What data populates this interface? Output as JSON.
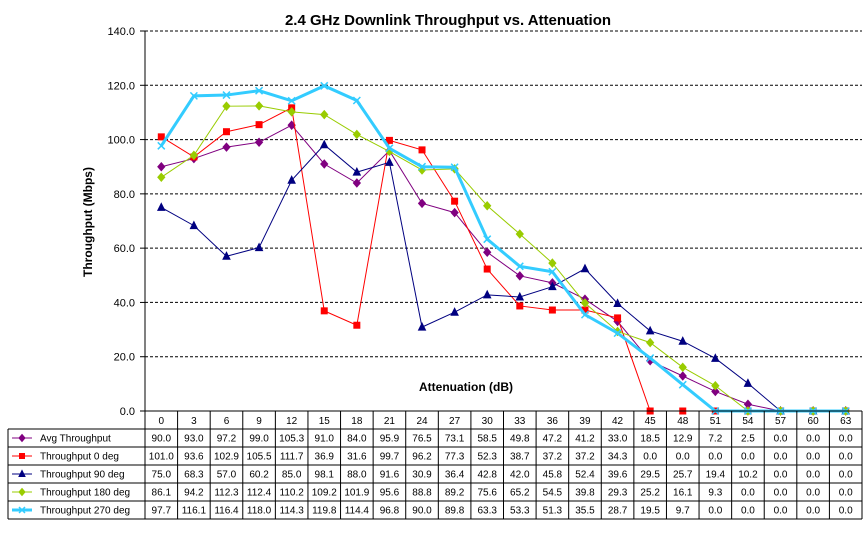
{
  "chart_data": {
    "type": "line",
    "title": "2.4 GHz Downlink Throughput vs. Attenuation",
    "xlabel": "Attenuation (dB)",
    "ylabel": "Throughput (Mbps)",
    "ylim": [
      0,
      140
    ],
    "yticks": [
      "0.0",
      "20.0",
      "40.0",
      "60.0",
      "80.0",
      "100.0",
      "120.0",
      "140.0"
    ],
    "grid": "horizontal dashed",
    "legend": "data table below plot",
    "categories": [
      "0",
      "3",
      "6",
      "9",
      "12",
      "15",
      "18",
      "21",
      "24",
      "27",
      "30",
      "33",
      "36",
      "39",
      "42",
      "45",
      "48",
      "51",
      "54",
      "57",
      "60",
      "63"
    ],
    "series": [
      {
        "name": "Avg Throughput",
        "color": "#800080",
        "marker": "diamond",
        "values": [
          90.0,
          93.0,
          97.2,
          99.0,
          105.3,
          91.0,
          84.0,
          95.9,
          76.5,
          73.1,
          58.5,
          49.8,
          47.2,
          41.2,
          33.0,
          18.5,
          12.9,
          7.2,
          2.5,
          0.0,
          0.0,
          0.0
        ],
        "labels": [
          "90.0",
          "93.0",
          "97.2",
          "99.0",
          "105.3",
          "91.0",
          "84.0",
          "95.9",
          "76.5",
          "73.1",
          "58.5",
          "49.8",
          "47.2",
          "41.2",
          "33.0",
          "18.5",
          "12.9",
          "7.2",
          "2.5",
          "0.0",
          "0.0",
          "0.0"
        ]
      },
      {
        "name": "Throughput 0 deg",
        "color": "#ff0000",
        "marker": "square",
        "values": [
          101.0,
          93.6,
          102.9,
          105.5,
          111.7,
          36.9,
          31.6,
          99.7,
          96.2,
          77.3,
          52.3,
          38.7,
          37.2,
          37.2,
          34.3,
          0.0,
          0.0,
          0.0,
          0.0,
          0.0,
          0.0,
          0.0
        ],
        "labels": [
          "101.0",
          "93.6",
          "102.9",
          "105.5",
          "111.7",
          "36.9",
          "31.6",
          "99.7",
          "96.2",
          "77.3",
          "52.3",
          "38.7",
          "37.2",
          "37.2",
          "34.3",
          "0.0",
          "0.0",
          "0.0",
          "0.0",
          "0.0",
          "0.0",
          "0.0"
        ]
      },
      {
        "name": "Throughput 90 deg",
        "color": "#000080",
        "marker": "triangle",
        "values": [
          75.0,
          68.3,
          57.0,
          60.2,
          85.0,
          98.1,
          88.0,
          91.6,
          30.9,
          36.4,
          42.8,
          42.0,
          45.8,
          52.4,
          39.6,
          29.5,
          25.7,
          19.4,
          10.2,
          0.0,
          0.0,
          0.0
        ],
        "labels": [
          "75.0",
          "68.3",
          "57.0",
          "60.2",
          "85.0",
          "98.1",
          "88.0",
          "91.6",
          "30.9",
          "36.4",
          "42.8",
          "42.0",
          "45.8",
          "52.4",
          "39.6",
          "29.5",
          "25.7",
          "19.4",
          "10.2",
          "0.0",
          "0.0",
          "0.0"
        ]
      },
      {
        "name": "Throughput 180 deg",
        "color": "#99cc00",
        "marker": "diamond",
        "values": [
          86.1,
          94.2,
          112.3,
          112.4,
          110.2,
          109.2,
          101.9,
          95.6,
          88.8,
          89.2,
          75.6,
          65.2,
          54.5,
          39.8,
          29.3,
          25.2,
          16.1,
          9.3,
          0.0,
          0.0,
          0.0,
          0.0
        ],
        "labels": [
          "86.1",
          "94.2",
          "112.3",
          "112.4",
          "110.2",
          "109.2",
          "101.9",
          "95.6",
          "88.8",
          "89.2",
          "75.6",
          "65.2",
          "54.5",
          "39.8",
          "29.3",
          "25.2",
          "16.1",
          "9.3",
          "0.0",
          "0.0",
          "0.0",
          "0.0"
        ]
      },
      {
        "name": "Throughput 270 deg",
        "color": "#33ccff",
        "marker": "x",
        "values": [
          97.7,
          116.1,
          116.4,
          118.0,
          114.3,
          119.8,
          114.4,
          96.8,
          90.0,
          89.8,
          63.3,
          53.3,
          51.3,
          35.5,
          28.7,
          19.5,
          9.7,
          0.0,
          0.0,
          0.0,
          0.0,
          0.0
        ],
        "labels": [
          "97.7",
          "116.1",
          "116.4",
          "118.0",
          "114.3",
          "119.8",
          "114.4",
          "96.8",
          "90.0",
          "89.8",
          "63.3",
          "53.3",
          "51.3",
          "35.5",
          "28.7",
          "19.5",
          "9.7",
          "0.0",
          "0.0",
          "0.0",
          "0.0",
          "0.0"
        ]
      }
    ]
  }
}
